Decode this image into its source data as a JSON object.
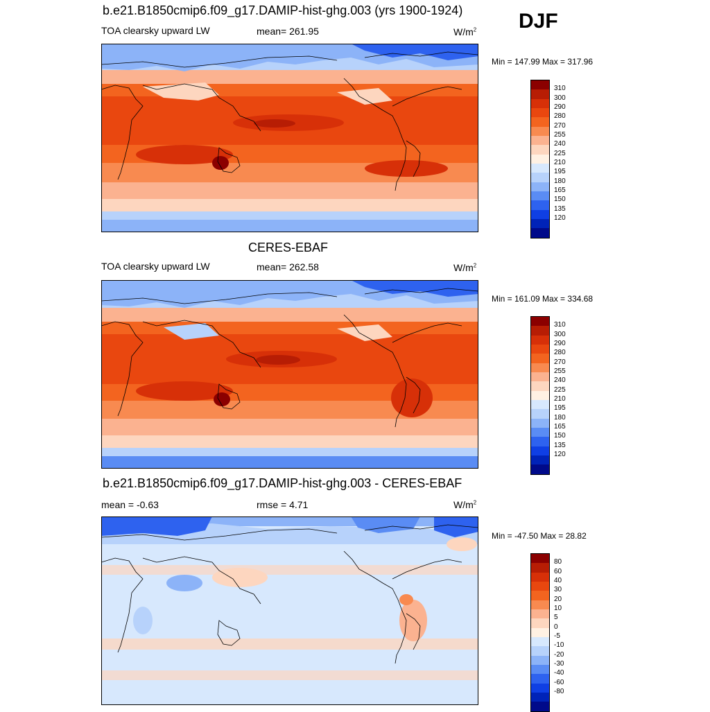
{
  "season": "DJF",
  "panels": [
    {
      "title": "b.e21.B1850cmip6.f09_g17.DAMIP-hist-ghg.003 (yrs 1900-1924)",
      "left": "TOA clearsky upward LW",
      "mid": "mean= 261.95",
      "units": "W/m",
      "units_sup": "2",
      "minmax": "Min = 147.99 Max = 317.96"
    },
    {
      "title": "CERES-EBAF",
      "left": "TOA clearsky upward LW",
      "mid": "mean= 262.58",
      "units": "W/m",
      "units_sup": "2",
      "minmax": "Min = 161.09 Max = 334.68"
    },
    {
      "title": "b.e21.B1850cmip6.f09_g17.DAMIP-hist-ghg.003 - CERES-EBAF",
      "left": "mean =  -0.63",
      "mid": "rmse =   4.71",
      "units": "W/m",
      "units_sup": "2",
      "minmax": "Min = -47.50 Max =  28.82"
    }
  ],
  "colorbars": {
    "field": {
      "labels": [
        "310",
        "300",
        "290",
        "280",
        "270",
        "255",
        "240",
        "225",
        "210",
        "195",
        "180",
        "165",
        "150",
        "135",
        "120"
      ],
      "colors": [
        "#8b0000",
        "#b71d04",
        "#d73008",
        "#e9470f",
        "#f3641f",
        "#f88a50",
        "#fbb290",
        "#fdd6bf",
        "#fff1e3",
        "#d7e8fd",
        "#b7d2fb",
        "#8cb3f8",
        "#5a8cf4",
        "#2e62ef",
        "#0f3fe4",
        "#0023b8",
        "#000a8a"
      ]
    },
    "diff": {
      "labels": [
        "80",
        "60",
        "40",
        "30",
        "20",
        "10",
        "5",
        "0",
        "-5",
        "-10",
        "-20",
        "-30",
        "-40",
        "-60",
        "-80"
      ],
      "colors": [
        "#8b0000",
        "#b71d04",
        "#d73008",
        "#e9470f",
        "#f3641f",
        "#f88a50",
        "#fbb290",
        "#fdd6bf",
        "#fff1e3",
        "#d7e8fd",
        "#b7d2fb",
        "#8cb3f8",
        "#5a8cf4",
        "#2e62ef",
        "#0f3fe4",
        "#0023b8",
        "#000a8a"
      ]
    }
  }
}
